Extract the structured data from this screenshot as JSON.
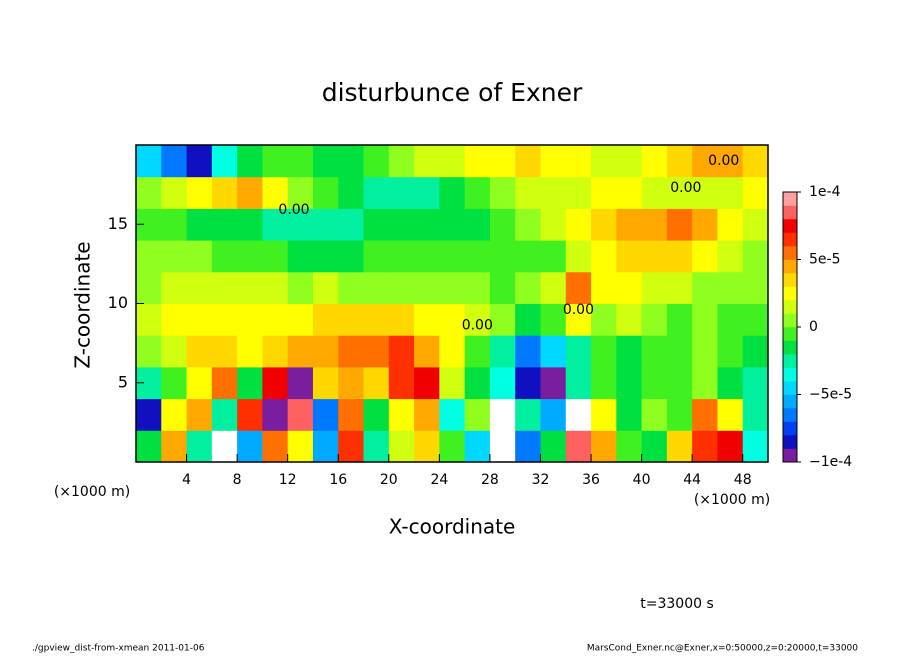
{
  "chart_data": {
    "type": "heatmap",
    "title": "disturbunce of Exner",
    "x_label": "X-coordinate",
    "y_label": "Z-coordinate",
    "x_unit": "(×1000 m)",
    "y_unit": "(×1000 m)",
    "time_label": "t=33000 s",
    "footer_left": "./gpview_dist-from-xmean  2011-01-06",
    "footer_right": "MarsCond_Exner.nc@Exner,x=0:50000,z=0:20000,t=33000",
    "xlim": [
      0,
      50
    ],
    "ylim": [
      0,
      20
    ],
    "xticks": [
      4,
      8,
      12,
      16,
      20,
      24,
      28,
      32,
      36,
      40,
      44,
      48
    ],
    "yticks": [
      5,
      10,
      15
    ],
    "x": [
      1,
      3,
      5,
      7,
      9,
      11,
      13,
      15,
      17,
      19,
      21,
      23,
      25,
      27,
      29,
      31,
      33,
      35,
      37,
      39,
      41,
      43,
      45,
      47,
      49
    ],
    "z": [
      1,
      3,
      5,
      7,
      9,
      11,
      13,
      15,
      17,
      19
    ],
    "values": [
      [
        -2e-05,
        4e-05,
        -3e-05,
        -0.00011,
        -6e-05,
        5e-05,
        2e-05,
        -6e-05,
        6e-05,
        -3e-05,
        1e-05,
        3e-05,
        -1e-05,
        -5e-05,
        -0.00012,
        -7e-05,
        -2e-05,
        8e-05,
        4e-05,
        -1e-05,
        -2e-05,
        3e-05,
        6e-05,
        7e-05,
        -4e-05
      ],
      [
        -8e-05,
        2e-05,
        4e-05,
        -3e-05,
        6e-05,
        -9e-05,
        8e-05,
        -7e-05,
        5e-05,
        -2e-05,
        2e-05,
        4e-05,
        -4e-05,
        0,
        -0.00011,
        -3e-05,
        -6e-05,
        -0.00012,
        2e-05,
        -2e-05,
        0,
        -1e-05,
        5e-05,
        2e-05,
        -3e-05
      ],
      [
        -3e-05,
        -1e-05,
        2e-05,
        5e-05,
        -2e-05,
        7e-05,
        -0.0001,
        3e-05,
        4e-05,
        3e-05,
        6e-05,
        7e-05,
        1e-05,
        -2e-05,
        -4e-05,
        -8e-05,
        -9e-05,
        -3e-05,
        -1e-05,
        -2e-05,
        -1e-05,
        -1e-05,
        0,
        -2e-05,
        -3e-05
      ],
      [
        0,
        1e-05,
        3e-05,
        3e-05,
        2e-05,
        3e-05,
        4e-05,
        4e-05,
        5e-05,
        5e-05,
        6e-05,
        4e-05,
        2e-05,
        -1e-05,
        -3e-05,
        -7e-05,
        -5e-05,
        -3e-05,
        -1e-05,
        -2e-05,
        -1e-05,
        -1e-05,
        0,
        -1e-05,
        -2e-05
      ],
      [
        1e-05,
        2e-05,
        2e-05,
        2e-05,
        2e-05,
        2e-05,
        2e-05,
        3e-05,
        3e-05,
        3e-05,
        3e-05,
        2e-05,
        2e-05,
        1e-05,
        0,
        -2e-05,
        -1e-05,
        2e-05,
        0,
        1e-05,
        0,
        -1e-05,
        0,
        -1e-05,
        -1e-05
      ],
      [
        0,
        1e-05,
        1e-05,
        1e-05,
        1e-05,
        1e-05,
        0,
        1e-05,
        0,
        0,
        0,
        0,
        0,
        0,
        -1e-05,
        0,
        1e-05,
        5e-05,
        2e-05,
        2e-05,
        1e-05,
        1e-05,
        0,
        0,
        0
      ],
      [
        0,
        0,
        0,
        -1e-05,
        -1e-05,
        -1e-05,
        -2e-05,
        -2e-05,
        -2e-05,
        -1e-05,
        -1e-05,
        -1e-05,
        -1e-05,
        -1e-05,
        -1e-05,
        -1e-05,
        -1e-05,
        1e-05,
        2e-05,
        3e-05,
        3e-05,
        3e-05,
        2e-05,
        1e-05,
        0
      ],
      [
        -1e-05,
        -1e-05,
        -2e-05,
        -2e-05,
        -2e-05,
        -3e-05,
        -3e-05,
        -3e-05,
        -3e-05,
        -2e-05,
        -2e-05,
        -2e-05,
        -2e-05,
        -2e-05,
        -1e-05,
        0,
        1e-05,
        2e-05,
        3e-05,
        4e-05,
        4e-05,
        5e-05,
        4e-05,
        2e-05,
        1e-05
      ],
      [
        0,
        1e-05,
        2e-05,
        3e-05,
        4e-05,
        2e-05,
        0,
        -1e-05,
        -2e-05,
        -3e-05,
        -3e-05,
        -3e-05,
        -2e-05,
        -1e-05,
        0,
        1e-05,
        1e-05,
        1e-05,
        2e-05,
        2e-05,
        1e-05,
        1e-05,
        1e-05,
        1e-05,
        2e-05
      ],
      [
        -5e-05,
        -7e-05,
        -8e-05,
        -4e-05,
        -2e-05,
        -1e-05,
        -1e-05,
        -2e-05,
        -2e-05,
        -1e-05,
        0,
        1e-05,
        1e-05,
        2e-05,
        2e-05,
        3e-05,
        2e-05,
        2e-05,
        1e-05,
        1e-05,
        2e-05,
        3e-05,
        4e-05,
        4e-05,
        3e-05
      ]
    ],
    "colorbar": {
      "lim": [
        -0.0001,
        0.0001
      ],
      "ticks": [
        {
          "value": -0.0001,
          "label": "−1e-4"
        },
        {
          "value": -5e-05,
          "label": "−5e-5"
        },
        0,
        {
          "value": 5e-05,
          "label": "5e-5"
        },
        {
          "value": 0.0001,
          "label": "1e-4"
        }
      ],
      "colors": [
        "#7a1ea0",
        "#1010c0",
        "#0040f0",
        "#0078ff",
        "#00aaff",
        "#00d8ff",
        "#00ffe0",
        "#00f0a0",
        "#00e040",
        "#40f020",
        "#90ff20",
        "#d0ff10",
        "#ffff00",
        "#ffd800",
        "#ffa800",
        "#ff7000",
        "#ff3000",
        "#f00000",
        "#ff6060",
        "#ffa0a0"
      ],
      "out_of_range_color": "#ffffff"
    },
    "contour_labels": [
      {
        "text": "0.00",
        "x": 46.5,
        "z": 19.0
      },
      {
        "text": "0.00",
        "x": 43.5,
        "z": 17.3
      },
      {
        "text": "0.00",
        "x": 12.5,
        "z": 15.9
      },
      {
        "text": "0.00",
        "x": 35.0,
        "z": 9.6
      },
      {
        "text": "0.00",
        "x": 27.0,
        "z": 8.6
      }
    ]
  }
}
